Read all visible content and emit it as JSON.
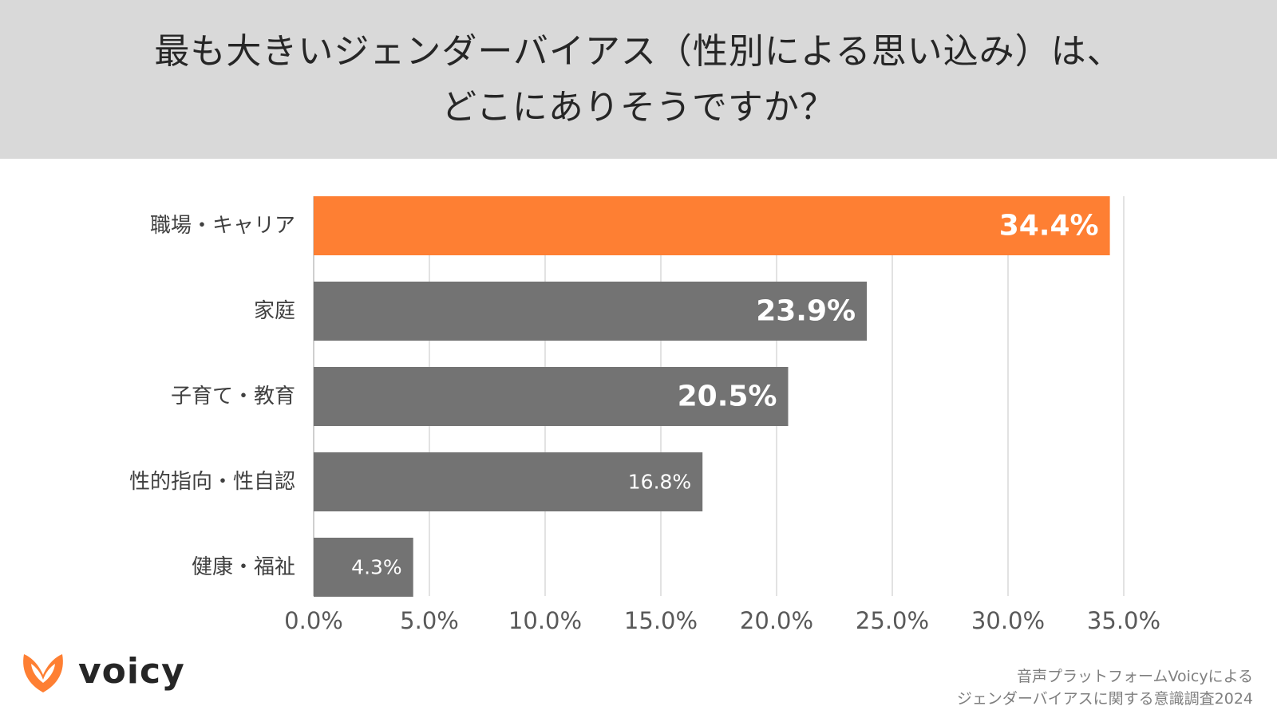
{
  "header": {
    "title_line1": "最も大きいジェンダーバイアス（性別による思い込み）は、",
    "title_line2": "どこにありそうですか？"
  },
  "chart_data": {
    "type": "bar",
    "orientation": "horizontal",
    "categories": [
      "職場・キャリア",
      "家庭",
      "子育て・教育",
      "性的指向・性自認",
      "健康・福祉"
    ],
    "values": [
      34.4,
      23.9,
      20.5,
      16.8,
      4.3
    ],
    "value_labels": [
      "34.4%",
      "23.9%",
      "20.5%",
      "16.8%",
      "4.3%"
    ],
    "x_ticks": [
      "0.0%",
      "5.0%",
      "10.0%",
      "15.0%",
      "20.0%",
      "25.0%",
      "30.0%",
      "35.0%"
    ],
    "xlim": [
      0,
      35
    ],
    "grid": true,
    "legend": "none",
    "colors": {
      "highlight": "#fe7f33",
      "default": "#737373",
      "grid": "#d9d9d9"
    }
  },
  "logo": {
    "icon": "voicy-logo-icon",
    "text": "voicy",
    "color": "#fe7f33"
  },
  "source": {
    "line1": "音声プラットフォームVoicyによる",
    "line2": "ジェンダーバイアスに関する意識調査2024"
  }
}
